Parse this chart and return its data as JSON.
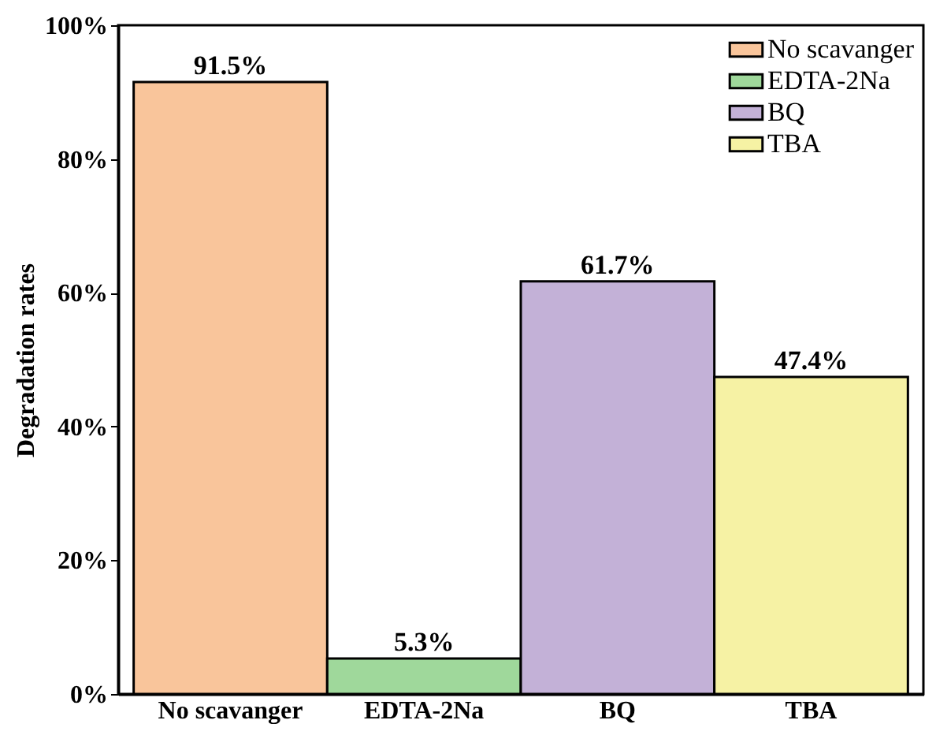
{
  "chart_data": {
    "type": "bar",
    "ylabel": "Degradation rates",
    "categories": [
      "No scavanger",
      "EDTA-2Na",
      "BQ",
      "TBA"
    ],
    "series": [
      {
        "name": "No scavanger",
        "color": "#f9c59b",
        "values": [
          91.5,
          null,
          null,
          null
        ],
        "value_labels": [
          "91.5%",
          null,
          null,
          null
        ]
      },
      {
        "name": "EDTA-2Na",
        "color": "#9fd89b",
        "values": [
          null,
          5.3,
          null,
          null
        ],
        "value_labels": [
          null,
          "5.3%",
          null,
          null
        ]
      },
      {
        "name": "BQ",
        "color": "#c3b1d7",
        "values": [
          null,
          null,
          61.7,
          null
        ],
        "value_labels": [
          null,
          null,
          "61.7%",
          null
        ]
      },
      {
        "name": "TBA",
        "color": "#f6f2a4",
        "values": [
          null,
          null,
          null,
          47.4
        ],
        "value_labels": [
          null,
          null,
          null,
          "47.4%"
        ]
      }
    ],
    "ylim": [
      0,
      100
    ],
    "yticks": [
      {
        "value": 0,
        "label": "0%"
      },
      {
        "value": 20,
        "label": "20%"
      },
      {
        "value": 40,
        "label": "40%"
      },
      {
        "value": 60,
        "label": "60%"
      },
      {
        "value": 80,
        "label": "80%"
      },
      {
        "value": 100,
        "label": "100%"
      }
    ],
    "legend": "top right",
    "grid": false
  }
}
